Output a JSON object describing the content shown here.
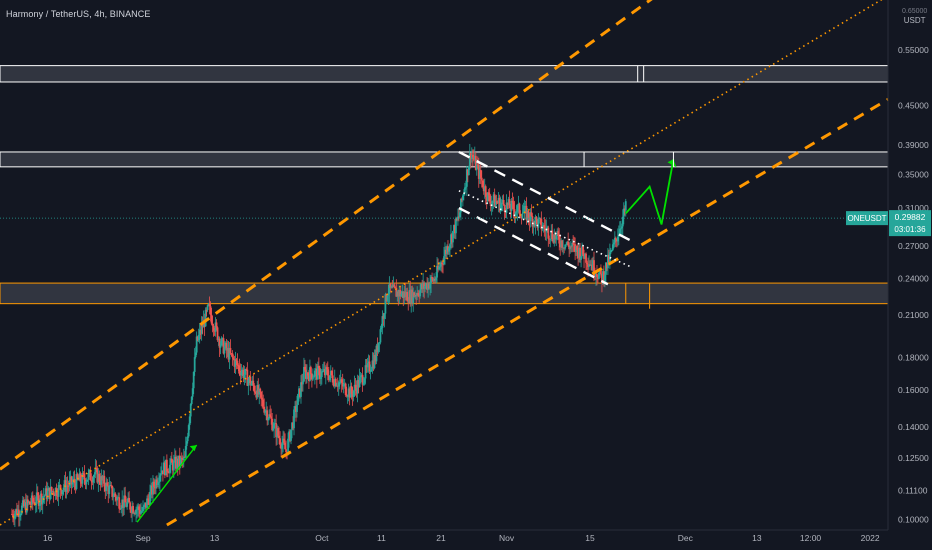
{
  "header": {
    "symbol_title": "Harmony / TetherUS, 4h, BINANCE"
  },
  "price_axis": {
    "unit_top": "0.65000",
    "unit": "USDT",
    "ticks": [
      "0.55000",
      "0.45000",
      "0.39000",
      "0.35000",
      "0.31000",
      "0.27000",
      "0.24000",
      "0.21000",
      "0.18000",
      "0.16000",
      "0.14000",
      "0.12500",
      "0.11100",
      "0.10000"
    ]
  },
  "last_price": {
    "symbol": "ONEUSDT",
    "price": "0.29882",
    "countdown": "03:01:36",
    "color": "#26a69a"
  },
  "time_axis": {
    "ticks": [
      "16",
      "Sep",
      "13",
      "Oct",
      "11",
      "21",
      "Nov",
      "15",
      "Dec",
      "13",
      "12:00",
      "2022"
    ]
  },
  "colors": {
    "background": "#131722",
    "up": "#26a69a",
    "down": "#ef5350",
    "orange": "#ff9800",
    "zone_fill": "#4a4f5a",
    "arrow_green": "#00e100",
    "white": "#ffffff"
  },
  "chart_data": {
    "type": "candlestick",
    "title": "Harmony / TetherUS, 4h, BINANCE",
    "y_scale": "log",
    "ylim": [
      0.098,
      0.66
    ],
    "x_range": [
      "Aug 8",
      "Jan 4"
    ],
    "x_ticks": [
      "16",
      "Sep",
      "13",
      "Oct",
      "11",
      "21",
      "Nov",
      "15",
      "Dec",
      "13",
      "12:00",
      "2022"
    ],
    "y_ticks": [
      0.55,
      0.45,
      0.39,
      0.35,
      0.31,
      0.27,
      0.24,
      0.21,
      0.18,
      0.16,
      0.14,
      0.125,
      0.111,
      0.1
    ],
    "price_path": [
      {
        "x": "Aug 10",
        "y": 0.102
      },
      {
        "x": "Aug 16",
        "y": 0.11
      },
      {
        "x": "Aug 24",
        "y": 0.118
      },
      {
        "x": "Aug 28",
        "y": 0.107
      },
      {
        "x": "Sep 1",
        "y": 0.103
      },
      {
        "x": "Sep 4",
        "y": 0.12
      },
      {
        "x": "Sep 8",
        "y": 0.124
      },
      {
        "x": "Sep 10",
        "y": 0.19
      },
      {
        "x": "Sep 12",
        "y": 0.215
      },
      {
        "x": "Sep 14",
        "y": 0.19
      },
      {
        "x": "Sep 20",
        "y": 0.16
      },
      {
        "x": "Sep 25",
        "y": 0.128
      },
      {
        "x": "Sep 28",
        "y": 0.17
      },
      {
        "x": "Oct 2",
        "y": 0.17
      },
      {
        "x": "Oct 6",
        "y": 0.158
      },
      {
        "x": "Oct 10",
        "y": 0.18
      },
      {
        "x": "Oct 12",
        "y": 0.23
      },
      {
        "x": "Oct 16",
        "y": 0.225
      },
      {
        "x": "Oct 20",
        "y": 0.24
      },
      {
        "x": "Oct 24",
        "y": 0.3
      },
      {
        "x": "Oct 26",
        "y": 0.38
      },
      {
        "x": "Oct 29",
        "y": 0.32
      },
      {
        "x": "Nov 4",
        "y": 0.305
      },
      {
        "x": "Nov 10",
        "y": 0.275
      },
      {
        "x": "Nov 14",
        "y": 0.262
      },
      {
        "x": "Nov 17",
        "y": 0.24
      },
      {
        "x": "Nov 19",
        "y": 0.27
      },
      {
        "x": "Nov 21",
        "y": 0.31
      }
    ],
    "projection": [
      {
        "x": "Nov 21",
        "y": 0.304
      },
      {
        "x": "Nov 25",
        "y": 0.335
      },
      {
        "x": "Nov 27",
        "y": 0.292
      },
      {
        "x": "Nov 29",
        "y": 0.37
      }
    ],
    "horizontal_zones": [
      {
        "from": 0.49,
        "to": 0.52,
        "color": "#ffffff"
      },
      {
        "from": 0.36,
        "to": 0.38,
        "color": "#ffffff"
      },
      {
        "from": 0.219,
        "to": 0.236,
        "color": "#ff9800"
      }
    ],
    "trend_lines": [
      {
        "style": "dashed",
        "color": "#ff9800",
        "from": {
          "x": "Aug 8",
          "y": 0.12
        },
        "to": {
          "x": "Nov 27",
          "y": 0.68
        }
      },
      {
        "style": "dotted",
        "color": "#ff9800",
        "from": {
          "x": "Aug 8",
          "y": 0.098
        },
        "to": {
          "x": "Jan 4",
          "y": 0.67
        }
      },
      {
        "style": "dashed",
        "color": "#ff9800",
        "from": {
          "x": "Sep 5",
          "y": 0.098
        },
        "to": {
          "x": "Jan 4",
          "y": 0.46
        }
      },
      {
        "style": "dashed",
        "color": "#ffffff",
        "from": {
          "x": "Oct 24",
          "y": 0.38
        },
        "to": {
          "x": "Nov 22",
          "y": 0.275
        }
      },
      {
        "style": "dashed",
        "color": "#ffffff",
        "from": {
          "x": "Oct 24",
          "y": 0.31
        },
        "to": {
          "x": "Nov 18",
          "y": 0.235
        }
      },
      {
        "style": "dotted",
        "color": "#ffffff",
        "from": {
          "x": "Oct 24",
          "y": 0.33
        },
        "to": {
          "x": "Nov 22",
          "y": 0.25
        }
      }
    ],
    "last_price": 0.29882
  }
}
